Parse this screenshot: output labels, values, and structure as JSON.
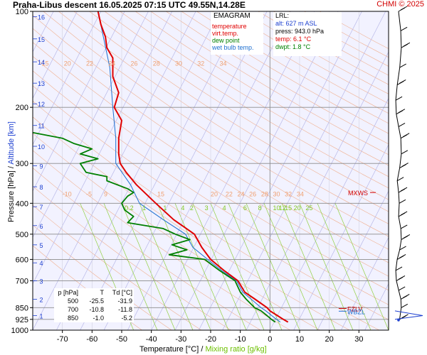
{
  "title": "Praha-Libus   descent   16.05.2025 07:15 UTC  49.55N,14.28E",
  "brand": "CHMI © 2025",
  "y_axis_label_pressure": "Pressure [hPa]",
  "y_axis_label_slash": " / ",
  "y_axis_label_altitude": "Altitude [km]",
  "x_axis_label": "Temperature [°C]  /  ",
  "x_axis_label_mixing": "Mixing ratio [g/kg]",
  "legend": {
    "title": "EMAGRAM",
    "items": [
      {
        "label": "temperature",
        "color": "#e00000"
      },
      {
        "label": "virt.temp.",
        "color": "#e00000"
      },
      {
        "label": "dew point",
        "color": "#008000"
      },
      {
        "label": "wet bulb temp.",
        "color": "#1e6fd0"
      }
    ]
  },
  "lrl": {
    "title": "LRL:",
    "alt": "alt: 627 m ASL",
    "press": "press: 943.0 hPa",
    "temp": "temp: 6.1 °C",
    "dwpt": "dwpt: 1.8 °C"
  },
  "pressure_table": {
    "header": [
      "p [hPa]",
      "T",
      "Td [°C]"
    ],
    "rows": [
      [
        "500",
        "-25.5",
        "-31.9"
      ],
      [
        "700",
        "-10.8",
        "-11.8"
      ],
      [
        "850",
        "-1.0",
        "-5.2"
      ]
    ]
  },
  "markers": [
    {
      "label": "MXWS",
      "color": "#d20000"
    },
    {
      "label": "FZLV",
      "color": "#d20000"
    },
    {
      "label": "WBZL",
      "color": "#1e6fd0"
    }
  ],
  "colors": {
    "temperature": "#e00000",
    "dew_point": "#008000",
    "wet_bulb": "#1e6fd0",
    "isotherm": "#b8b8e8",
    "dry_adiabat": "#f0b090",
    "mixing_ratio": "#90d040",
    "background": "#f2f2ff"
  },
  "chart_data": {
    "type": "line",
    "title": "Praha-Libus   descent   16.05.2025 07:15 UTC  49.55N,14.28E",
    "xlabel": "Temperature [°C]  /  Mixing ratio [g/kg]",
    "ylabel": "Pressure [hPa]  /  Altitude [km]",
    "xlim": [
      -80,
      40
    ],
    "ylim": [
      1000,
      100
    ],
    "y_scale": "log",
    "x_ticks": [
      -70,
      -60,
      -50,
      -40,
      -30,
      -20,
      -10,
      0,
      10,
      20,
      30
    ],
    "y_ticks": [
      100,
      200,
      300,
      400,
      500,
      600,
      700,
      850,
      925,
      1000
    ],
    "altitude_ticks_km": [
      1,
      2,
      3,
      4,
      5,
      6,
      7,
      8,
      9,
      10,
      11,
      12,
      13,
      14,
      15,
      16
    ],
    "mixing_ratio_labels_top": [
      "15",
      "20",
      "22",
      "24",
      "26",
      "28",
      "30",
      "32",
      "34"
    ],
    "mixing_ratio_labels_mid": [
      "-10",
      "-5",
      "9",
      "15",
      "20",
      "22",
      "24",
      "26",
      "28",
      "30",
      "32",
      "34"
    ],
    "mixing_ratio_labels_low": [
      "0.2",
      "1",
      "1",
      "4",
      "2",
      "3",
      "4",
      "6",
      "8",
      "10",
      "12",
      "15",
      "20",
      "25"
    ],
    "series": [
      {
        "name": "temperature",
        "pressure": [
          943,
          925,
          900,
          870,
          850,
          800,
          760,
          700,
          650,
          600,
          550,
          500,
          450,
          400,
          350,
          320,
          300,
          280,
          250,
          220,
          200,
          180,
          160,
          140,
          130,
          120,
          110,
          100
        ],
        "values": [
          6.1,
          4.5,
          2.5,
          0.0,
          -1.0,
          -5.0,
          -8.5,
          -10.8,
          -15.5,
          -20.0,
          -23.0,
          -25.5,
          -32.5,
          -38.5,
          -45.0,
          -48.5,
          -50.5,
          -51.0,
          -51.0,
          -50.0,
          -52.5,
          -51.0,
          -53.0,
          -53.0,
          -55.0,
          -55.5,
          -57.0,
          -58.0
        ]
      },
      {
        "name": "dew point",
        "pressure": [
          943,
          925,
          900,
          870,
          850,
          800,
          760,
          700,
          650,
          600,
          580,
          560,
          540,
          520,
          500,
          480,
          460,
          440,
          420,
          400,
          380,
          370,
          360,
          340,
          330,
          320,
          300,
          290,
          280,
          270,
          260,
          250,
          240
        ],
        "values": [
          1.8,
          0.5,
          -1.0,
          -3.0,
          -5.2,
          -8.0,
          -10.0,
          -11.8,
          -17.0,
          -22.0,
          -34.0,
          -28.0,
          -33.0,
          -27.0,
          -31.9,
          -36.0,
          -48.0,
          -46.0,
          -49.0,
          -50.0,
          -48.0,
          -46.0,
          -48.0,
          -55.0,
          -55.0,
          -62.0,
          -64.0,
          -58.0,
          -64.0,
          -60.0,
          -66.0,
          -70.0,
          -80.0
        ]
      },
      {
        "name": "wet bulb temp.",
        "pressure": [
          943,
          925,
          900,
          870,
          850,
          800,
          760,
          700,
          650,
          600,
          550,
          500,
          450,
          400,
          350,
          300,
          250,
          200,
          150,
          100
        ],
        "values": [
          3.5,
          2.2,
          0.6,
          -1.4,
          -3.0,
          -6.3,
          -9.2,
          -11.3,
          -16.3,
          -21.0,
          -26.0,
          -28.5,
          -36.0,
          -44.0,
          -47.0,
          -52.0,
          -52.0,
          -53.0,
          -54.0,
          -58.0
        ]
      }
    ],
    "grid": true,
    "legend_position": "top-center"
  }
}
